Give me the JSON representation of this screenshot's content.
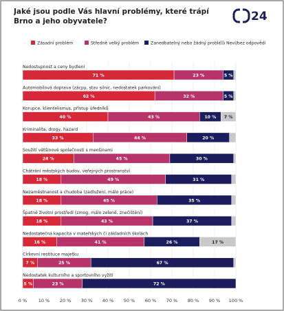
{
  "logo": "24",
  "chart_data": {
    "type": "stacked-bar-horizontal",
    "title": "Jaké jsou podle Vás hlavní problémy, které trápí Brno a jeho obyvatele?",
    "categories": [
      "Nedostupnost a ceny bydlení",
      "Automobilová doprava (zácpy, stav silnic, nedostatek parkování)",
      "Korupce, klientelismus, přístup úředníků",
      "Kriminalita, drogy, hazard",
      "Soužití většinové společnosti s menšinami",
      "Chátrání městských budov, veřejných prostranství",
      "Nezaměstnanost a chudoba (zadlužení, málo práce)",
      "Špatné životní prostředí (smog, málo zeleně, znečištění)",
      "Nedostatečná kapacita v mateřských či základních školách",
      "Církevní restituce majetku",
      "Nedostatek kulturního a sportovního vyžití"
    ],
    "series": [
      {
        "name": "Zásadní problém",
        "color": "#d62839",
        "values": [
          71,
          62,
          40,
          33,
          24,
          18,
          18,
          18,
          16,
          7,
          5
        ],
        "value_labels": [
          "71 %",
          "62 %",
          "40 %",
          "33 %",
          "24 %",
          "18 %",
          "18 %",
          "18 %",
          "16 %",
          "7 %",
          "5 %"
        ]
      },
      {
        "name": "Středně velký problém",
        "color": "#b8336a",
        "values": [
          23,
          32,
          43,
          44,
          45,
          49,
          45,
          43,
          41,
          25,
          23
        ],
        "value_labels": [
          "23 %",
          "32 %",
          "43 %",
          "44 %",
          "45 %",
          "49 %",
          "45 %",
          "43 %",
          "41 %",
          "25 %",
          "23 %"
        ]
      },
      {
        "name": "Zanedbatelný nebo žádný problém",
        "color": "#1b1d5c",
        "values": [
          5,
          5,
          10,
          20,
          30,
          31,
          35,
          37,
          26,
          67,
          72
        ],
        "value_labels": [
          "5 %",
          "5 %",
          "10 %",
          "20 %",
          "30 %",
          "31 %",
          "35 %",
          "37 %",
          "26 %",
          "67 %",
          "72 %"
        ]
      },
      {
        "name": "Neví/bez odpovědi",
        "color": "#c9c9c9",
        "values": [
          1,
          1,
          7,
          3,
          1,
          2,
          2,
          2,
          17,
          1,
          0
        ],
        "value_labels": [
          null,
          null,
          "7 %",
          null,
          null,
          null,
          null,
          null,
          "17 %",
          null,
          null
        ]
      }
    ],
    "xlim": [
      0,
      100
    ],
    "xticks": [
      {
        "value": 0,
        "label": "0 %"
      },
      {
        "value": 10,
        "label": "10 %"
      },
      {
        "value": 20,
        "label": "20 %"
      },
      {
        "value": 30,
        "label": "30 %"
      },
      {
        "value": 40,
        "label": "40 %"
      },
      {
        "value": 50,
        "label": "50 %"
      },
      {
        "value": 60,
        "label": "60 %"
      },
      {
        "value": 70,
        "label": "70 %"
      },
      {
        "value": 80,
        "label": "80 %"
      },
      {
        "value": 90,
        "label": "90 %"
      },
      {
        "value": 100,
        "label": "100 %"
      }
    ],
    "grid": true
  }
}
